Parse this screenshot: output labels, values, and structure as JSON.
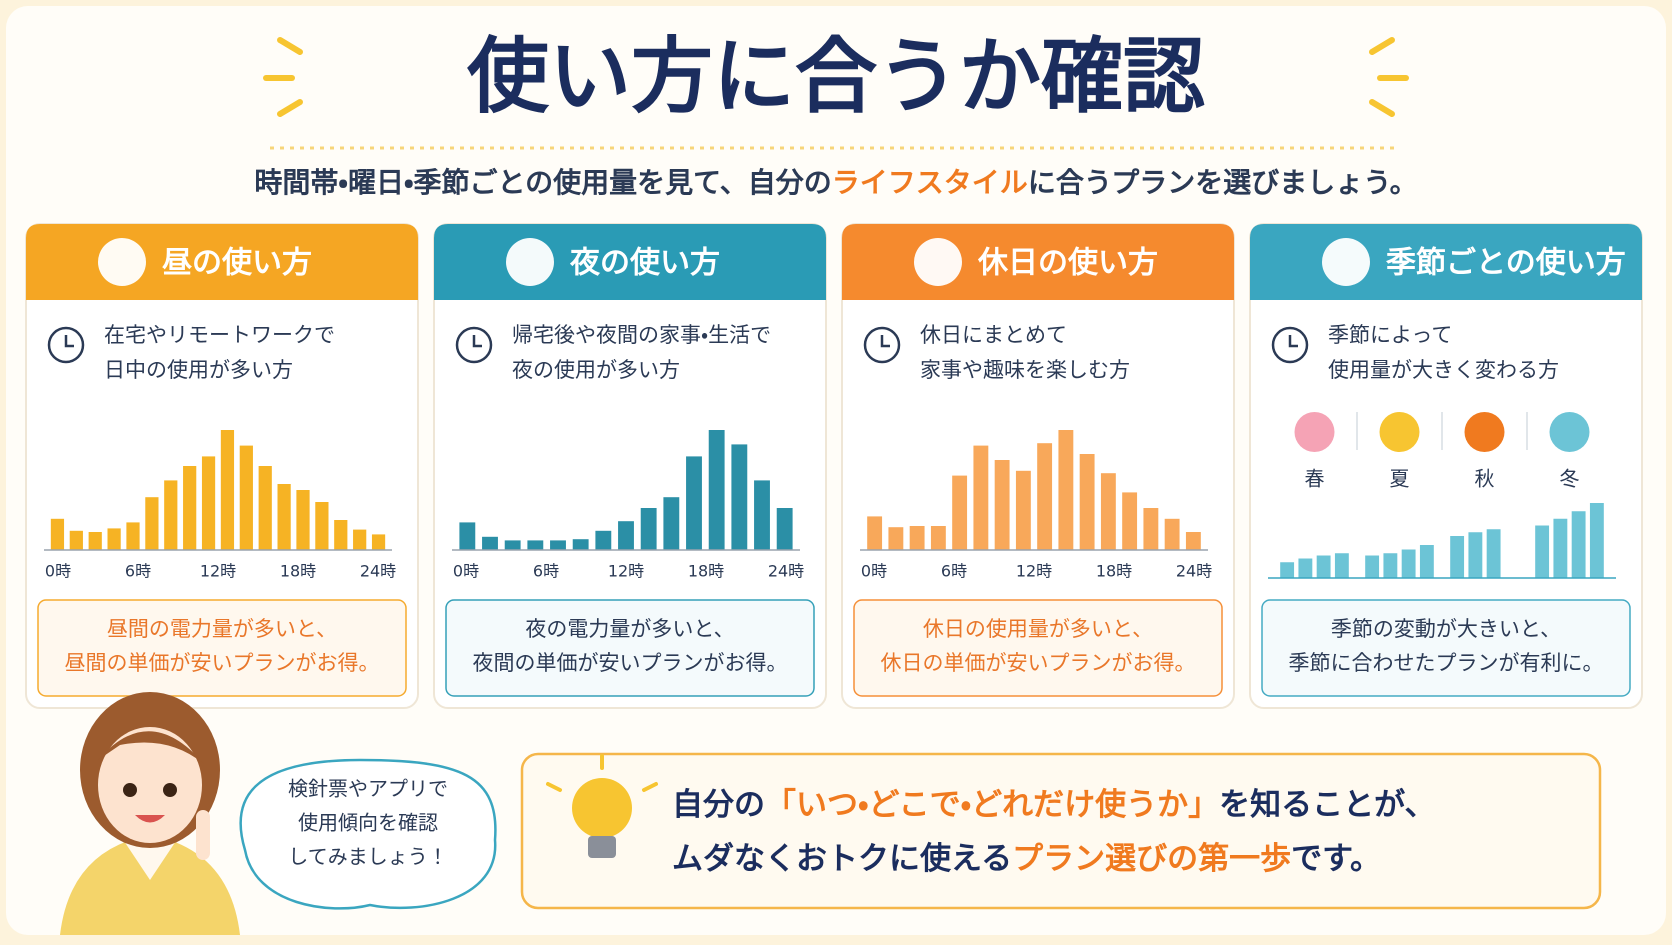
{
  "header": {
    "title": "使い方に合うか確認",
    "subtitle": [
      "時間帯・曜日・季節ごとの使用量を見て、自分の",
      "ライフスタイル",
      "に合うプランを選びましょう。"
    ]
  },
  "cards": [
    {
      "title": "昼の使い方",
      "color": "#f5a623",
      "bar_color": "#f6b324",
      "note_color": "#e9772a",
      "desc": [
        "在宅やリモートワークで",
        "日中の使用が多い方"
      ],
      "chart": {
        "type": "bar",
        "ylim": [
          0,
          100
        ],
        "xtick_labels": [
          "0時",
          "6時",
          "12時",
          "18時",
          "24時"
        ],
        "values": [
          26,
          16,
          15,
          18,
          23,
          44,
          58,
          70,
          78,
          100,
          87,
          70,
          55,
          50,
          40,
          25,
          17,
          13
        ]
      },
      "note": [
        "昼間の電力量が多いと、",
        "昼間の単価が安いプランがお得。"
      ]
    },
    {
      "title": "夜の使い方",
      "color": "#2a9bb5",
      "bar_color": "#2b8fa6",
      "note_color": "#2b3a55",
      "desc": [
        "帰宅後や夜間の家事・生活で",
        "夜の使用が多い方"
      ],
      "chart": {
        "type": "bar",
        "ylim": [
          0,
          100
        ],
        "xtick_labels": [
          "0時",
          "6時",
          "12時",
          "18時",
          "24時"
        ],
        "values": [
          23,
          11,
          8,
          8,
          8,
          9,
          16,
          24,
          35,
          44,
          78,
          100,
          88,
          58,
          35
        ]
      },
      "note": [
        "夜の電力量が多いと、",
        "夜間の単価が安いプランがお得。"
      ]
    },
    {
      "title": "休日の使い方",
      "color": "#f58a2e",
      "bar_color": "#f8a85a",
      "note_color": "#e9772a",
      "desc": [
        "休日にまとめて",
        "家事や趣味を楽しむ方"
      ],
      "chart": {
        "type": "bar",
        "ylim": [
          0,
          100
        ],
        "xtick_labels": [
          "0時",
          "6時",
          "12時",
          "18時",
          "24時"
        ],
        "values": [
          28,
          19,
          20,
          20,
          62,
          87,
          75,
          66,
          89,
          100,
          80,
          64,
          48,
          35,
          26,
          15
        ]
      },
      "note": [
        "休日の使用量が多いと、",
        "休日の単価が安いプランがお得。"
      ]
    },
    {
      "title": "季節ごとの使い方",
      "color": "#3aa6c0",
      "bar_color": "#6cc4d6",
      "note_color": "#2b3a55",
      "desc": [
        "季節によって",
        "使用量が大きく変わる方"
      ],
      "chart": {
        "type": "grouped",
        "ylim": [
          0,
          100
        ],
        "groups": [
          {
            "label": "春",
            "values": [
              21,
              26,
              30,
              33
            ]
          },
          {
            "label": "夏",
            "values": [
              30,
              33,
              38,
              44
            ]
          },
          {
            "label": "秋",
            "values": [
              56,
              61,
              65
            ]
          },
          {
            "label": "冬",
            "values": [
              70,
              79,
              89,
              100
            ]
          }
        ]
      },
      "note": [
        "季節の変動が大きいと、",
        "季節に合わせたプランが有利に。"
      ]
    }
  ],
  "bubble": [
    "検針票やアプリで",
    "使用傾向を確認",
    "してみましょう！"
  ],
  "tip": [
    [
      "自分の",
      "「いつ・どこで・どれだけ使うか」",
      "を知ることが、"
    ],
    [
      "ムダなくおトクに使える",
      "プラン選びの第一歩",
      "です。"
    ]
  ]
}
